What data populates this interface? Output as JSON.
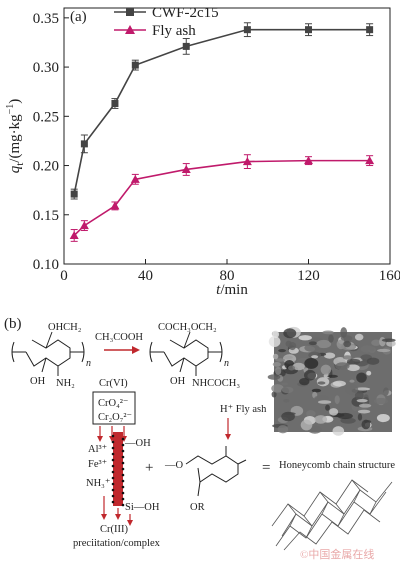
{
  "chart_data": {
    "type": "line",
    "panel_label": "(a)",
    "xlabel_italic": "t",
    "xlabel_rest": "/min",
    "ylabel_italic": "q",
    "ylabel_sub": "t",
    "ylabel_rest": "/(mg·kg",
    "ylabel_sup": "−1",
    "ylabel_close": ")",
    "xlim": [
      0,
      160
    ],
    "ylim": [
      0.1,
      0.36
    ],
    "x_ticks": [
      0,
      40,
      80,
      120,
      160
    ],
    "x_tick_labels": [
      "0",
      "40",
      "80",
      "120",
      "160"
    ],
    "y_ticks": [
      0.1,
      0.15,
      0.2,
      0.25,
      0.3,
      0.35
    ],
    "y_tick_labels": [
      "0.10",
      "0.15",
      "0.20",
      "0.25",
      "0.30",
      "0.35"
    ],
    "legend_position": "top-right",
    "series": [
      {
        "name": "CWF-2c15",
        "color": "#444444",
        "marker": "square",
        "x": [
          5,
          10,
          25,
          35,
          60,
          90,
          120,
          150
        ],
        "y": [
          0.171,
          0.222,
          0.263,
          0.302,
          0.321,
          0.338,
          0.338,
          0.338
        ],
        "err": [
          0.005,
          0.009,
          0.005,
          0.005,
          0.008,
          0.007,
          0.006,
          0.006
        ]
      },
      {
        "name": "Fly ash",
        "color": "#c01a6b",
        "marker": "triangle",
        "x": [
          5,
          10,
          25,
          35,
          60,
          90,
          120,
          150
        ],
        "y": [
          0.129,
          0.139,
          0.159,
          0.186,
          0.196,
          0.204,
          0.205,
          0.205
        ],
        "err": [
          0.006,
          0.005,
          0.004,
          0.005,
          0.006,
          0.007,
          0.004,
          0.005
        ]
      }
    ]
  },
  "scheme": {
    "panel_label": "(b)",
    "reagent": "CH₃COOH",
    "chitosan_substituent": "OHCH₂",
    "chitosan_oh": "OH",
    "chitosan_nh2": "NH₂",
    "acetyl_substituent": "COCH₃OCH₂",
    "acetyl_oh": "OH",
    "acetyl_nh": "NHCOCH₃",
    "repeat_n": "n",
    "crvi_label": "Cr(VI)",
    "cro4": "CrO₄²⁻",
    "cr2o7": "Cr₂O₇²⁻",
    "h_plus_fly_ash": "H⁺ Fly ash",
    "al": "Al³⁺",
    "fe": "Fe³⁺",
    "nh3": "NH₃⁺",
    "si_oh": "Si—OH",
    "oh_right": "—OH",
    "plus": "+",
    "fragment_o": "—O",
    "fragment_or": "OR",
    "equals": "=",
    "honeycomb": "Honeycomb chain structure",
    "criii": "Cr(III)",
    "precip": "preciitation/complex",
    "watermark": "©中国金属在线"
  }
}
